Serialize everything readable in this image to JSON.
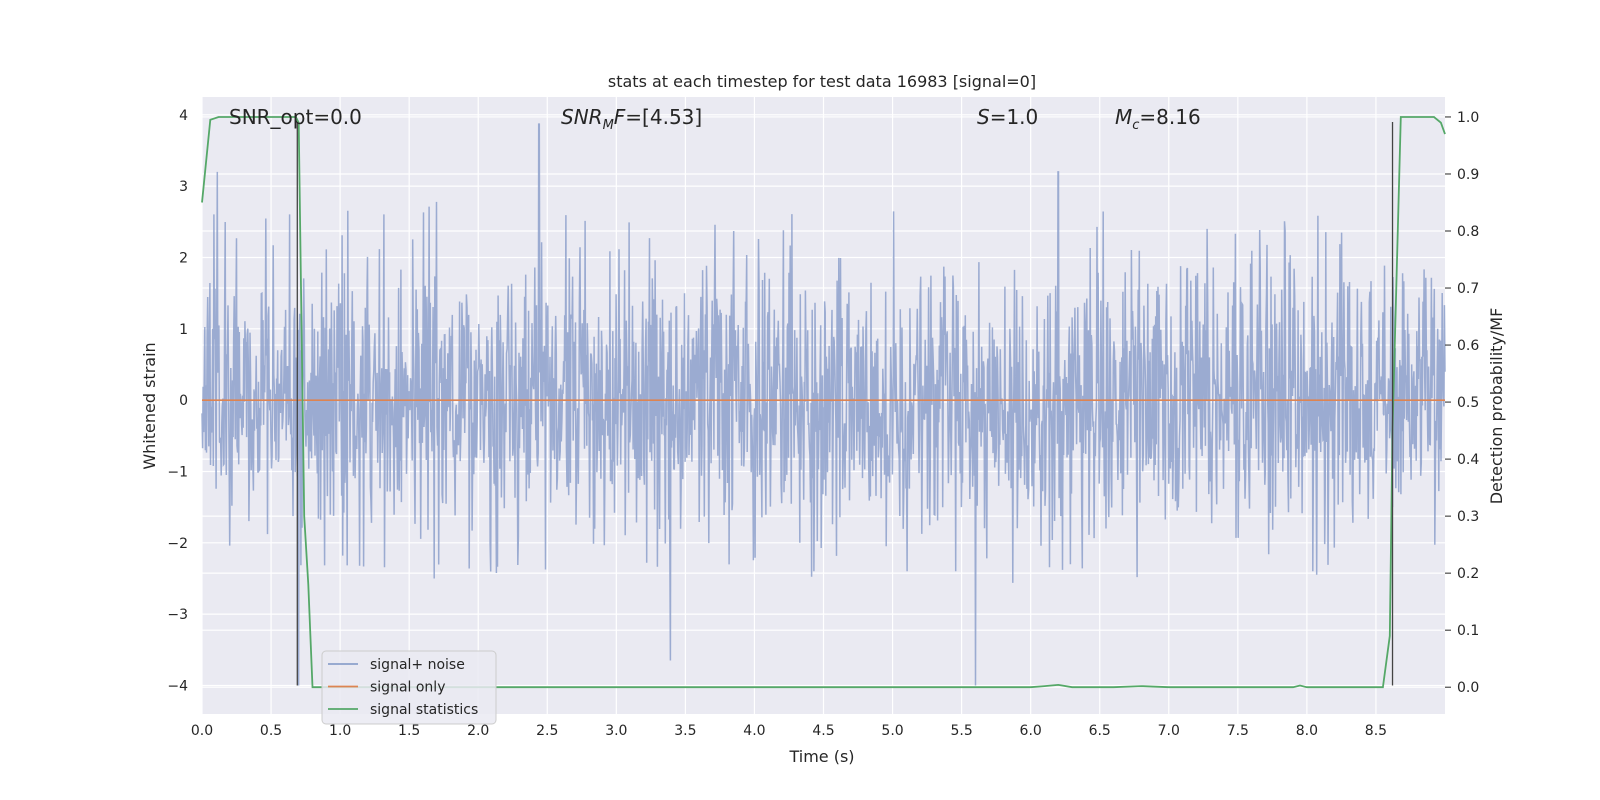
{
  "chart_data": {
    "type": "line",
    "title": "stats at each timestep for test data 16983 [signal=0]",
    "xlabel": "Time (s)",
    "ylabel": "Whitened strain",
    "y2label": "Detection probability/MF",
    "xlim": [
      0.0,
      9.0
    ],
    "ylim": [
      -4.4,
      4.25
    ],
    "y2lim": [
      -0.047,
      1.035
    ],
    "xticks": [
      "0.0",
      "0.5",
      "1.0",
      "1.5",
      "2.0",
      "2.5",
      "3.0",
      "3.5",
      "4.0",
      "4.5",
      "5.0",
      "5.5",
      "6.0",
      "6.5",
      "7.0",
      "7.5",
      "8.0",
      "8.5"
    ],
    "xtick_values": [
      0,
      0.5,
      1,
      1.5,
      2,
      2.5,
      3,
      3.5,
      4,
      4.5,
      5,
      5.5,
      6,
      6.5,
      7,
      7.5,
      8,
      8.5
    ],
    "yticks": [
      "4",
      "3",
      "2",
      "1",
      "0",
      "−1",
      "−2",
      "−3",
      "−4"
    ],
    "ytick_values": [
      4,
      3,
      2,
      1,
      0,
      -1,
      -2,
      -3,
      -4
    ],
    "y2ticks": [
      "1.0",
      "0.9",
      "0.8",
      "0.7",
      "0.6",
      "0.5",
      "0.4",
      "0.3",
      "0.2",
      "0.1",
      "0.0"
    ],
    "y2tick_values": [
      1.0,
      0.9,
      0.8,
      0.7,
      0.6,
      0.5,
      0.4,
      0.3,
      0.2,
      0.1,
      0.0
    ],
    "grid": true,
    "legend_position": "bottom-left",
    "annotations": {
      "snr_opt": "SNR_opt=0.0",
      "snr_mf_prefix": "SNR",
      "snr_mf_sub": "M",
      "snr_mf_suffix": "F=[4.53]",
      "s_prefix": "S",
      "s_suffix": "=1.0",
      "mc_prefix": "M",
      "mc_sub": "c",
      "mc_suffix": "=8.16"
    },
    "vertical_markers": [
      0.69,
      8.62
    ],
    "series": [
      {
        "name": "signal+ noise",
        "color": "#8da0cb",
        "axis": "left",
        "description": "noise-like whitened strain, amplitude roughly within −2 to 2.5 with spikes up to 3.9 and down to −4",
        "notable_extremes": [
          [
            0.7,
            -4.0
          ],
          [
            2.44,
            3.87
          ],
          [
            3.39,
            -3.65
          ],
          [
            5.6,
            -4.0
          ],
          [
            0.11,
            3.2
          ],
          [
            6.2,
            3.2
          ]
        ]
      },
      {
        "name": "signal only",
        "color": "#dd8452",
        "axis": "left",
        "x": [
          0,
          9
        ],
        "y": [
          0,
          0
        ]
      },
      {
        "name": "signal statistics",
        "color": "#55a868",
        "axis": "right",
        "x": [
          0.0,
          0.06,
          0.12,
          0.2,
          0.4,
          0.6,
          0.68,
          0.7,
          0.72,
          0.74,
          0.77,
          0.8,
          1.0,
          2.0,
          3.0,
          4.0,
          5.0,
          6.0,
          6.1,
          6.2,
          6.3,
          6.6,
          6.8,
          7.0,
          7.5,
          7.9,
          7.95,
          8.0,
          8.3,
          8.55,
          8.6,
          8.62,
          8.68,
          8.8,
          8.92,
          8.97,
          9.0
        ],
        "y": [
          0.85,
          0.995,
          1.0,
          1.0,
          1.0,
          1.0,
          1.0,
          0.99,
          0.65,
          0.3,
          0.18,
          0.0,
          0.0,
          0.0,
          0.0,
          0.0,
          0.0,
          0.0,
          0.002,
          0.004,
          0.0,
          0.0,
          0.002,
          0.0,
          0.0,
          0.0,
          0.003,
          0.0,
          0.0,
          0.0,
          0.09,
          0.45,
          1.0,
          1.0,
          1.0,
          0.99,
          0.97
        ]
      }
    ]
  }
}
